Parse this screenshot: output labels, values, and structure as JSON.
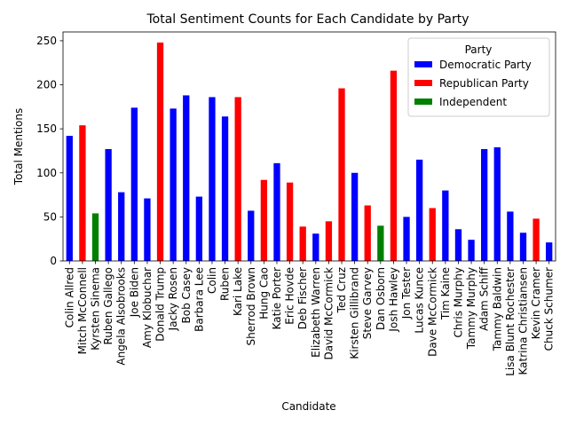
{
  "chart_data": {
    "type": "bar",
    "title": "Total Sentiment Counts for Each Candidate by Party",
    "xlabel": "Candidate",
    "ylabel": "Total Mentions",
    "ylim": [
      0,
      260
    ],
    "yticks": [
      0,
      50,
      100,
      150,
      200,
      250
    ],
    "grid": false,
    "legend": {
      "title": "Party",
      "placement": "top-right",
      "entries": [
        {
          "name": "Democratic Party",
          "color": "#0000ff"
        },
        {
          "name": "Republican Party",
          "color": "#ff0000"
        },
        {
          "name": "Independent",
          "color": "#008000"
        }
      ]
    },
    "categories": [
      "Colin Allred",
      "Mitch McConnell",
      "Kyrsten Sinema",
      "Ruben Gallego",
      "Angela Alsobrooks",
      "Joe Biden",
      "Amy Klobuchar",
      "Donald Trump",
      "Jacky Rosen",
      "Bob Casey",
      "Barbara Lee",
      "Colin",
      "Ruben",
      "Kari Lake",
      "Sherrod Brown",
      "Hung Cao",
      "Katie Porter",
      "Eric Hovde",
      "Deb Fischer",
      "Elizabeth Warren",
      "David McCormick",
      "Ted Cruz",
      "Kirsten Gillibrand",
      "Steve Garvey",
      "Dan Osborn",
      "Josh Hawley",
      "Jon Tester",
      "Lucas Kunce",
      "Dave McCormick",
      "Tim Kaine",
      "Chris Murphy",
      "Tammy Murphy",
      "Adam Schiff",
      "Tammy Baldwin",
      "Lisa Blunt Rochester",
      "Katrina Christiansen",
      "Kevin Cramer",
      "Chuck Schumer"
    ],
    "values": [
      142,
      154,
      54,
      127,
      78,
      174,
      71,
      248,
      173,
      188,
      73,
      186,
      164,
      186,
      57,
      92,
      111,
      89,
      39,
      31,
      45,
      196,
      100,
      63,
      40,
      216,
      50,
      115,
      60,
      80,
      36,
      24,
      127,
      129,
      56,
      32,
      48,
      21
    ],
    "parties": [
      "Democratic Party",
      "Republican Party",
      "Independent",
      "Democratic Party",
      "Democratic Party",
      "Democratic Party",
      "Democratic Party",
      "Republican Party",
      "Democratic Party",
      "Democratic Party",
      "Democratic Party",
      "Democratic Party",
      "Democratic Party",
      "Republican Party",
      "Democratic Party",
      "Republican Party",
      "Democratic Party",
      "Republican Party",
      "Republican Party",
      "Democratic Party",
      "Republican Party",
      "Republican Party",
      "Democratic Party",
      "Republican Party",
      "Independent",
      "Republican Party",
      "Democratic Party",
      "Democratic Party",
      "Republican Party",
      "Democratic Party",
      "Democratic Party",
      "Democratic Party",
      "Democratic Party",
      "Democratic Party",
      "Democratic Party",
      "Democratic Party",
      "Republican Party",
      "Democratic Party"
    ]
  }
}
